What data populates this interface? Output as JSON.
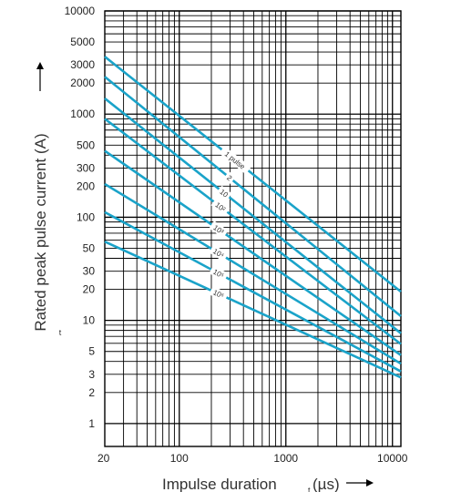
{
  "chart_data": {
    "type": "line",
    "title": "",
    "xlabel": "Impulse duration",
    "xlabel_sym": "t",
    "xlabel_unit": "(µs)",
    "ylabel": "Rated peak pulse current (A)",
    "ylabel_sym": "t",
    "xscale": "log",
    "yscale": "log",
    "xlim": [
      20,
      12000
    ],
    "ylim": [
      0.6,
      10000
    ],
    "grid": true,
    "x_ticks": [
      {
        "value": 20,
        "label": "20"
      },
      {
        "value": 100,
        "label": "100"
      },
      {
        "value": 1000,
        "label": "1000"
      },
      {
        "value": 10000,
        "label": "10000"
      }
    ],
    "y_ticks": [
      {
        "value": 1,
        "label": "1"
      },
      {
        "value": 2,
        "label": "2"
      },
      {
        "value": 3,
        "label": "3"
      },
      {
        "value": 5,
        "label": "5"
      },
      {
        "value": 10,
        "label": "10"
      },
      {
        "value": 20,
        "label": "20"
      },
      {
        "value": 30,
        "label": "30"
      },
      {
        "value": 50,
        "label": "50"
      },
      {
        "value": 100,
        "label": "100"
      },
      {
        "value": 200,
        "label": "200"
      },
      {
        "value": 300,
        "label": "300"
      },
      {
        "value": 500,
        "label": "500"
      },
      {
        "value": 1000,
        "label": "1000"
      },
      {
        "value": 2000,
        "label": "2000"
      },
      {
        "value": 3000,
        "label": "3000"
      },
      {
        "value": 5000,
        "label": "5000"
      },
      {
        "value": 10000,
        "label": "10000"
      }
    ],
    "line_color": "#1aa3c9",
    "grid_color": "#000000",
    "series": [
      {
        "name": "1 pulse",
        "x": [
          20,
          12000
        ],
        "y": [
          3600,
          19
        ]
      },
      {
        "name": "2",
        "x": [
          20,
          12000
        ],
        "y": [
          2300,
          11
        ]
      },
      {
        "name": "10",
        "x": [
          20,
          12000
        ],
        "y": [
          1420,
          7.5
        ]
      },
      {
        "name": "10²",
        "x": [
          20,
          12000
        ],
        "y": [
          900,
          5.9
        ]
      },
      {
        "name": "10³",
        "x": [
          20,
          12000
        ],
        "y": [
          440,
          4.6
        ]
      },
      {
        "name": "10⁴",
        "x": [
          20,
          12000
        ],
        "y": [
          210,
          3.8
        ]
      },
      {
        "name": "10⁵",
        "x": [
          20,
          12000
        ],
        "y": [
          112,
          3.2
        ]
      },
      {
        "name": "10⁶",
        "x": [
          20,
          12000
        ],
        "y": [
          58,
          2.8
        ]
      }
    ]
  }
}
